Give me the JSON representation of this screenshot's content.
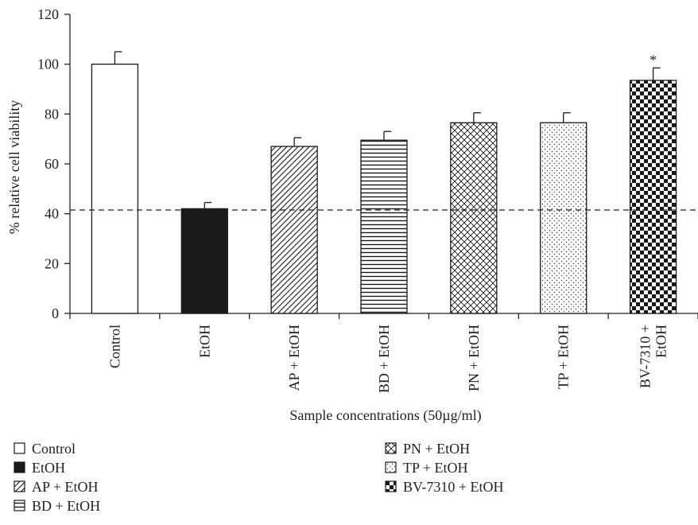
{
  "chart_data": {
    "type": "bar",
    "title": "",
    "xlabel": "Sample concentrations (50µg/ml)",
    "ylabel": "% relative cell viability",
    "ylim": [
      0,
      120
    ],
    "yticks": [
      0,
      20,
      40,
      60,
      80,
      100,
      120
    ],
    "categories": [
      "Control",
      "EtOH",
      "AP + EtOH",
      "BD + EtOH",
      "PN + EtOH",
      "TP + EtOH",
      "BV-7310 + EtOH"
    ],
    "tick_labels": [
      [
        "Control"
      ],
      [
        "EtOH"
      ],
      [
        "AP + EtOH"
      ],
      [
        "BD + EtOH"
      ],
      [
        "PN + EtOH"
      ],
      [
        "TP + EtOH"
      ],
      [
        "BV-7310 +",
        "EtOH"
      ]
    ],
    "values": [
      100,
      42,
      67,
      69.5,
      76.5,
      76.5,
      93.5
    ],
    "errors": [
      5,
      2.5,
      3.5,
      3.5,
      4,
      4,
      5
    ],
    "patterns": [
      "empty",
      "solid",
      "diagonal",
      "horizontal",
      "crosshatch",
      "dots",
      "checker"
    ],
    "reference_line": 41.5,
    "annotations": [
      {
        "category": "BV-7310 + EtOH",
        "text": "*"
      }
    ],
    "legend": [
      "Control",
      "EtOH",
      "AP + EtOH",
      "BD + EtOH",
      "PN + EtOH",
      "TP + EtOH",
      "BV-7310 + EtOH"
    ],
    "legend_position": "bottom",
    "grid": false,
    "colors": {
      "axis": "#222222",
      "bar_fill_dark": "#1a1a1a",
      "bar_fill_light": "#ffffff"
    }
  }
}
